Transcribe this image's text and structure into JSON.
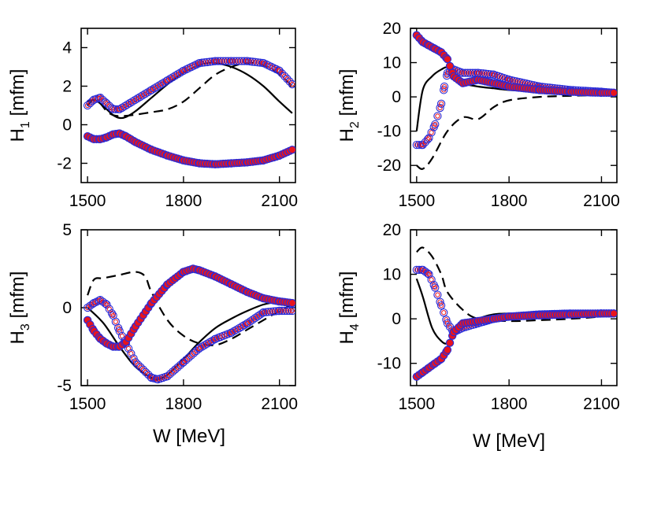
{
  "chart_data": [
    {
      "type": "line",
      "panel": "H1",
      "ylabel_base": "H",
      "ylabel_sub": "1",
      "ylabel_unit": "[mfm]",
      "xlabel": "",
      "xlim": [
        1480,
        2150
      ],
      "ylim": [
        -3,
        5
      ],
      "xticks": [
        1500,
        1800,
        2100
      ],
      "yticks": [
        4,
        2,
        0,
        -2
      ],
      "series": [
        {
          "style": "solid",
          "x": [
            1500,
            1520,
            1540,
            1560,
            1580,
            1600,
            1620,
            1650,
            1700,
            1750,
            1800,
            1850,
            1880,
            1900,
            1950,
            2000,
            2050,
            2100,
            2140
          ],
          "y": [
            1.2,
            1.3,
            1.1,
            0.8,
            0.5,
            0.35,
            0.4,
            0.7,
            1.4,
            2.1,
            2.7,
            3.1,
            3.2,
            3.2,
            3.0,
            2.6,
            2.0,
            1.2,
            0.6
          ]
        },
        {
          "style": "dashed",
          "x": [
            1500,
            1520,
            1540,
            1560,
            1580,
            1600,
            1640,
            1700,
            1750,
            1800,
            1850,
            1900,
            1950,
            2000,
            2050,
            2100,
            2140
          ],
          "y": [
            1.0,
            1.3,
            1.1,
            0.7,
            0.5,
            0.45,
            0.5,
            0.65,
            0.8,
            1.2,
            1.9,
            2.6,
            3.0,
            3.2,
            3.1,
            2.6,
            2.0
          ]
        },
        {
          "style": "open",
          "x": [
            1500,
            1520,
            1540,
            1560,
            1580,
            1600,
            1640,
            1700,
            1750,
            1800,
            1850,
            1900,
            1950,
            2000,
            2050,
            2100,
            2140
          ],
          "y": [
            1.0,
            1.3,
            1.4,
            1.1,
            0.8,
            0.8,
            1.2,
            1.8,
            2.3,
            2.8,
            3.2,
            3.3,
            3.3,
            3.3,
            3.2,
            2.8,
            2.1
          ]
        },
        {
          "style": "filled",
          "x": [
            1500,
            1520,
            1540,
            1560,
            1580,
            1600,
            1620,
            1650,
            1700,
            1750,
            1800,
            1850,
            1900,
            1950,
            2000,
            2050,
            2100,
            2140
          ],
          "y": [
            -0.6,
            -0.75,
            -0.75,
            -0.65,
            -0.5,
            -0.45,
            -0.6,
            -0.9,
            -1.3,
            -1.6,
            -1.85,
            -2.0,
            -2.05,
            -2.0,
            -1.95,
            -1.85,
            -1.6,
            -1.3
          ]
        }
      ]
    },
    {
      "type": "line",
      "panel": "H2",
      "ylabel_base": "H",
      "ylabel_sub": "2",
      "ylabel_unit": "[mfm]",
      "xlabel": "",
      "xlim": [
        1480,
        2150
      ],
      "ylim": [
        -25,
        20
      ],
      "xticks": [
        1500,
        1800,
        2100
      ],
      "yticks": [
        20,
        10,
        0,
        -10,
        -20
      ],
      "series": [
        {
          "style": "solid",
          "x": [
            1500,
            1520,
            1550,
            1580,
            1600,
            1620,
            1650,
            1700,
            1750,
            1800,
            1900,
            2000,
            2100,
            2140
          ],
          "y": [
            -10,
            2,
            6,
            8,
            8.5,
            6,
            4,
            3,
            2.5,
            2,
            1.5,
            1.2,
            1.0,
            1.0
          ]
        },
        {
          "style": "dashed",
          "x": [
            1500,
            1520,
            1550,
            1600,
            1650,
            1700,
            1750,
            1800,
            1900,
            2000,
            2100,
            2140
          ],
          "y": [
            -20,
            -21,
            -18,
            -10,
            -6,
            -6.5,
            -3,
            -1,
            0,
            0.3,
            0.5,
            0.5
          ]
        },
        {
          "style": "open",
          "x": [
            1500,
            1520,
            1540,
            1560,
            1580,
            1590,
            1600,
            1620,
            1650,
            1700,
            1750,
            1800,
            1900,
            2000,
            2100,
            2140
          ],
          "y": [
            -14,
            -14,
            -12,
            -8,
            -2,
            3,
            7,
            8,
            7,
            7,
            6.5,
            5,
            3,
            2,
            1.5,
            1.2
          ]
        },
        {
          "style": "filled",
          "x": [
            1500,
            1520,
            1540,
            1560,
            1580,
            1600,
            1620,
            1650,
            1700,
            1750,
            1800,
            1900,
            2000,
            2100,
            2140
          ],
          "y": [
            18,
            16,
            15,
            14,
            13,
            11,
            6,
            4,
            5,
            4,
            3,
            2,
            1.5,
            1.2,
            1.2
          ]
        }
      ]
    },
    {
      "type": "line",
      "panel": "H3",
      "ylabel_base": "H",
      "ylabel_sub": "3",
      "ylabel_unit": "[mfm]",
      "xlabel": "W [MeV]",
      "xlim": [
        1480,
        2150
      ],
      "ylim": [
        -5,
        5
      ],
      "xticks": [
        1500,
        1800,
        2100
      ],
      "yticks": [
        5,
        0,
        -5
      ],
      "series": [
        {
          "style": "solid",
          "x": [
            1500,
            1550,
            1600,
            1650,
            1700,
            1720,
            1750,
            1800,
            1850,
            1900,
            1950,
            2000,
            2050,
            2100,
            2140
          ],
          "y": [
            0,
            -1.0,
            -2.5,
            -3.8,
            -4.5,
            -4.6,
            -4.3,
            -3.3,
            -2.2,
            -1.3,
            -0.7,
            -0.2,
            0.2,
            0.4,
            0.4
          ]
        },
        {
          "style": "dashed",
          "x": [
            1500,
            1520,
            1550,
            1600,
            1650,
            1680,
            1700,
            1750,
            1800,
            1850,
            1900,
            1950,
            2000,
            2050,
            2100,
            2140
          ],
          "y": [
            0.8,
            1.8,
            1.9,
            2.1,
            2.3,
            2.0,
            1.0,
            -0.8,
            -1.8,
            -2.3,
            -2.4,
            -2.0,
            -1.4,
            -0.8,
            -0.2,
            0.2
          ]
        },
        {
          "style": "open",
          "x": [
            1500,
            1520,
            1540,
            1560,
            1580,
            1600,
            1620,
            1650,
            1700,
            1720,
            1750,
            1800,
            1850,
            1900,
            1950,
            2000,
            2050,
            2100,
            2140
          ],
          "y": [
            0,
            0.3,
            0.5,
            0.2,
            -0.5,
            -1.5,
            -2.3,
            -3.5,
            -4.5,
            -4.6,
            -4.4,
            -3.5,
            -2.6,
            -2.0,
            -1.6,
            -1.0,
            -0.3,
            -0.2,
            -0.2
          ]
        },
        {
          "style": "filled",
          "x": [
            1500,
            1520,
            1540,
            1560,
            1580,
            1600,
            1620,
            1650,
            1700,
            1750,
            1800,
            1830,
            1850,
            1900,
            1950,
            2000,
            2050,
            2100,
            2140
          ],
          "y": [
            -0.8,
            -1.5,
            -2.0,
            -2.3,
            -2.5,
            -2.5,
            -2.2,
            -1.2,
            0.3,
            1.5,
            2.3,
            2.5,
            2.4,
            2.0,
            1.5,
            1.0,
            0.6,
            0.4,
            0.3
          ]
        }
      ]
    },
    {
      "type": "line",
      "panel": "H4",
      "ylabel_base": "H",
      "ylabel_sub": "4",
      "ylabel_unit": "[mfm]",
      "xlabel": "W [MeV]",
      "xlim": [
        1480,
        2150
      ],
      "ylim": [
        -15,
        20
      ],
      "xticks": [
        1500,
        1800,
        2100
      ],
      "yticks": [
        20,
        10,
        0,
        -10
      ],
      "series": [
        {
          "style": "solid",
          "x": [
            1500,
            1520,
            1550,
            1580,
            1600,
            1620,
            1650,
            1700,
            1750,
            1800,
            1900,
            2000,
            2100,
            2140
          ],
          "y": [
            9,
            5,
            -2,
            -5,
            -5.5,
            -4,
            -2,
            0,
            1,
            1.2,
            1.3,
            1.2,
            1.2,
            1.2
          ]
        },
        {
          "style": "dashed",
          "x": [
            1500,
            1520,
            1550,
            1580,
            1600,
            1650,
            1700,
            1800,
            1900,
            2000,
            2100,
            2140
          ],
          "y": [
            15,
            16,
            14,
            10,
            6,
            2,
            0,
            -0.5,
            -0.3,
            0,
            0.5,
            0.8
          ]
        },
        {
          "style": "open",
          "x": [
            1500,
            1520,
            1540,
            1560,
            1580,
            1600,
            1620,
            1650,
            1700,
            1750,
            1800,
            1900,
            2000,
            2100,
            2140
          ],
          "y": [
            11,
            11,
            10,
            7,
            3,
            -1,
            -3,
            -2,
            -1,
            0,
            0.5,
            1,
            1.2,
            1.2,
            1.2
          ]
        },
        {
          "style": "filled",
          "x": [
            1500,
            1520,
            1540,
            1560,
            1580,
            1600,
            1620,
            1650,
            1700,
            1750,
            1800,
            1900,
            2000,
            2100,
            2140
          ],
          "y": [
            -13,
            -12,
            -11,
            -10,
            -9,
            -7,
            -3,
            -1,
            -0.5,
            0,
            0.5,
            0.8,
            1,
            1.2,
            1.2
          ]
        }
      ]
    }
  ]
}
